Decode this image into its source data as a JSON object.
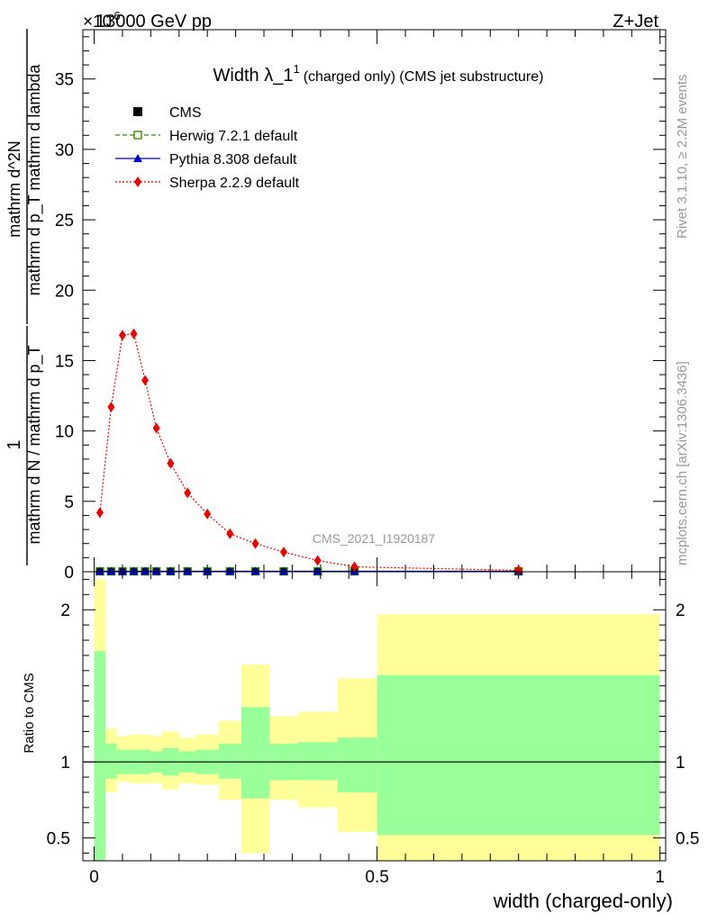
{
  "header": {
    "energy_label": "13000 GeV pp",
    "process_label": "Z+Jet",
    "exponent_label": "×10",
    "exponent_sup": "-6"
  },
  "side_text": {
    "rivet": "Rivet 3.1.10, ≥ 2.2M events",
    "mcplots": "mcplots.cern.ch [arXiv:1306.3436]"
  },
  "watermark": "CMS_2021_I1920187",
  "colors": {
    "cms": "#000000",
    "herwig": "#3a8a00",
    "pythia": "#0000cc",
    "sherpa": "#ee0000",
    "band_inner": "#99ff99",
    "band_outer": "#ffff99"
  },
  "chart_data": [
    {
      "type": "line",
      "title": "Width λ_1",
      "title_sup": "1",
      "subtitle": "(charged only) (CMS jet substructure)",
      "ylabel_num": "1",
      "ylabel_den": "mathrm d N / mathrm d p_T",
      "ylabel_num2": "mathrm d^2N",
      "ylabel_den2": "mathrm d p_T mathrm d lambda",
      "ylim": [
        0,
        38.5
      ],
      "xlim": [
        -0.02,
        1.01
      ],
      "yticks": [
        0,
        5,
        10,
        15,
        20,
        25,
        30,
        35
      ],
      "legend": {
        "placement": "top-left",
        "entries": [
          {
            "key": "cms",
            "label": "CMS"
          },
          {
            "key": "herwig",
            "label": "Herwig 7.2.1 default"
          },
          {
            "key": "pythia",
            "label": "Pythia 8.308 default"
          },
          {
            "key": "sherpa",
            "label": "Sherpa 2.2.9 default"
          }
        ]
      },
      "x": [
        0.01,
        0.03,
        0.05,
        0.07,
        0.09,
        0.11,
        0.135,
        0.165,
        0.2,
        0.24,
        0.285,
        0.335,
        0.395,
        0.46,
        0.75
      ],
      "series": [
        {
          "name": "CMS",
          "key": "cms",
          "values": [
            0.03,
            0.03,
            0.03,
            0.03,
            0.03,
            0.03,
            0.03,
            0.03,
            0.03,
            0.03,
            0.03,
            0.03,
            0.03,
            0.03,
            0.03
          ]
        },
        {
          "name": "Herwig 7.2.1 default",
          "key": "herwig",
          "values": [
            0.03,
            0.03,
            0.03,
            0.03,
            0.03,
            0.03,
            0.03,
            0.03,
            0.03,
            0.03,
            0.03,
            0.03,
            0.03,
            0.03,
            0.03
          ]
        },
        {
          "name": "Pythia 8.308 default",
          "key": "pythia",
          "values": [
            0.03,
            0.03,
            0.03,
            0.03,
            0.03,
            0.03,
            0.03,
            0.03,
            0.03,
            0.03,
            0.03,
            0.03,
            0.03,
            0.03,
            0.03
          ]
        },
        {
          "name": "Sherpa 2.2.9 default",
          "key": "sherpa",
          "values": [
            4.2,
            11.7,
            16.8,
            16.9,
            13.6,
            10.2,
            7.7,
            5.6,
            4.1,
            2.7,
            2.0,
            1.4,
            0.8,
            0.35,
            0.1
          ]
        }
      ]
    },
    {
      "type": "area",
      "ylabel": "Ratio to CMS",
      "xlabel": "width (charged-only)",
      "ylim": [
        0.35,
        2.25
      ],
      "xlim": [
        -0.02,
        1.01
      ],
      "xticks": [
        0,
        0.5,
        1
      ],
      "xtick_labels": [
        "0",
        "0.5",
        "1"
      ],
      "yticks": [
        0.5,
        1,
        2
      ],
      "ytick_labels": [
        "0.5",
        "1",
        "2"
      ],
      "reference": 1,
      "bins": [
        {
          "lo": 0.0,
          "hi": 0.02,
          "inner": [
            0.35,
            1.73
          ],
          "outer": [
            0.35,
            2.2
          ]
        },
        {
          "lo": 0.02,
          "hi": 0.04,
          "inner": [
            0.89,
            1.12
          ],
          "outer": [
            0.8,
            1.22
          ]
        },
        {
          "lo": 0.04,
          "hi": 0.06,
          "inner": [
            0.92,
            1.08
          ],
          "outer": [
            0.87,
            1.17
          ]
        },
        {
          "lo": 0.06,
          "hi": 0.08,
          "inner": [
            0.92,
            1.08
          ],
          "outer": [
            0.86,
            1.18
          ]
        },
        {
          "lo": 0.08,
          "hi": 0.1,
          "inner": [
            0.92,
            1.08
          ],
          "outer": [
            0.86,
            1.18
          ]
        },
        {
          "lo": 0.1,
          "hi": 0.12,
          "inner": [
            0.93,
            1.07
          ],
          "outer": [
            0.86,
            1.17
          ]
        },
        {
          "lo": 0.12,
          "hi": 0.15,
          "inner": [
            0.91,
            1.09
          ],
          "outer": [
            0.82,
            1.2
          ]
        },
        {
          "lo": 0.15,
          "hi": 0.18,
          "inner": [
            0.93,
            1.07
          ],
          "outer": [
            0.86,
            1.16
          ]
        },
        {
          "lo": 0.18,
          "hi": 0.22,
          "inner": [
            0.92,
            1.08
          ],
          "outer": [
            0.85,
            1.18
          ]
        },
        {
          "lo": 0.22,
          "hi": 0.26,
          "inner": [
            0.89,
            1.12
          ],
          "outer": [
            0.75,
            1.27
          ]
        },
        {
          "lo": 0.26,
          "hi": 0.31,
          "inner": [
            0.76,
            1.36
          ],
          "outer": [
            0.4,
            1.64
          ]
        },
        {
          "lo": 0.31,
          "hi": 0.36,
          "inner": [
            0.88,
            1.12
          ],
          "outer": [
            0.75,
            1.3
          ]
        },
        {
          "lo": 0.36,
          "hi": 0.43,
          "inner": [
            0.88,
            1.13
          ],
          "outer": [
            0.7,
            1.33
          ]
        },
        {
          "lo": 0.43,
          "hi": 0.5,
          "inner": [
            0.8,
            1.16
          ],
          "outer": [
            0.54,
            1.55
          ]
        },
        {
          "lo": 0.5,
          "hi": 1.0,
          "inner": [
            0.52,
            1.57
          ],
          "outer": [
            0.35,
            1.97
          ]
        }
      ]
    }
  ]
}
